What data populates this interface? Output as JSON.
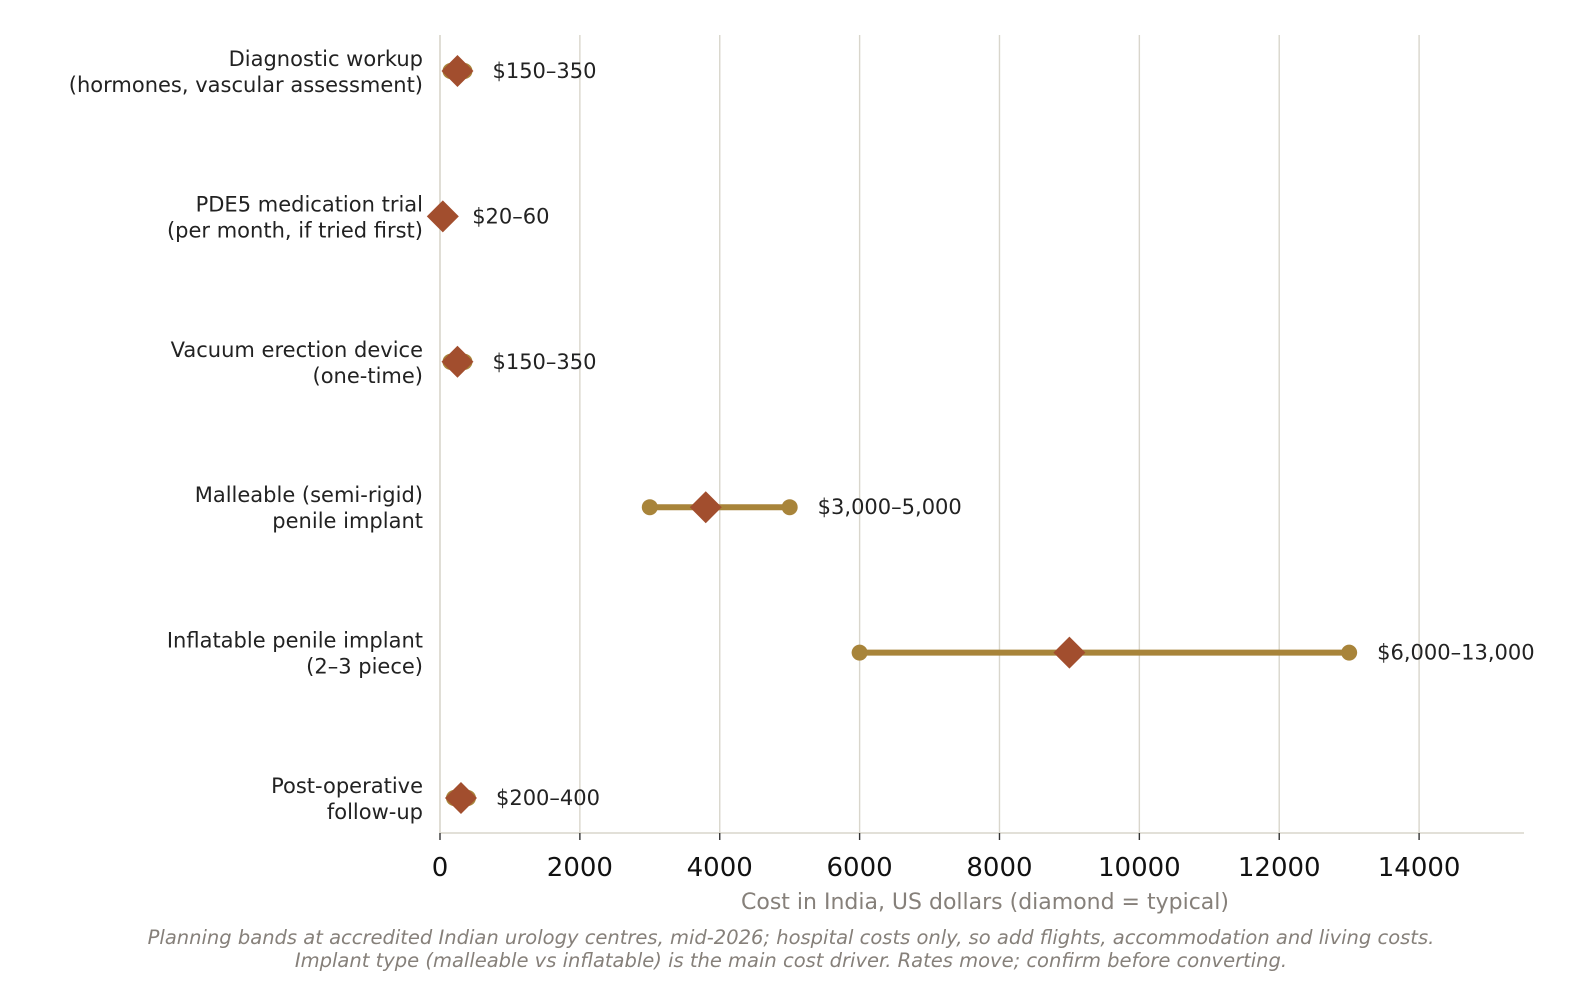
{
  "chart_data": {
    "type": "dumbbell",
    "categories": [
      [
        "Diagnostic workup",
        "(hormones, vascular assessment)"
      ],
      [
        "PDE5 medication trial",
        "(per month, if tried first)"
      ],
      [
        "Vacuum erection device",
        "(one-time)"
      ],
      [
        "Malleable (semi-rigid)",
        "penile implant"
      ],
      [
        "Inflatable penile implant",
        "(2–3 piece)"
      ],
      [
        "Post-operative",
        "follow-up"
      ]
    ],
    "low": [
      150,
      20,
      150,
      3000,
      6000,
      200
    ],
    "high": [
      350,
      60,
      350,
      5000,
      13000,
      400
    ],
    "typical": [
      250,
      40,
      250,
      3800,
      9000,
      300
    ],
    "range_labels": [
      "$150–350",
      "$20–60",
      "$150–350",
      "$3,000–5,000",
      "$6,000–13,000",
      "$200–400"
    ],
    "xlabel": "Cost in India, US dollars (diamond = typical)",
    "xlim": [
      0,
      15500
    ],
    "xticks": [
      0,
      2000,
      4000,
      6000,
      8000,
      10000,
      12000,
      14000
    ],
    "grid": "vertical",
    "caption_lines": [
      "Planning bands at accredited Indian urology centres, mid-2026; hospital costs only, so add flights, accommodation and living costs.",
      "Implant type (malleable vs inflatable) is the main cost driver. Rates move; confirm before converting."
    ],
    "colors": {
      "range": "#a8843a",
      "typical": "#a24e2e",
      "grid": "#d9d6cc",
      "muted_text": "#86807a"
    }
  }
}
